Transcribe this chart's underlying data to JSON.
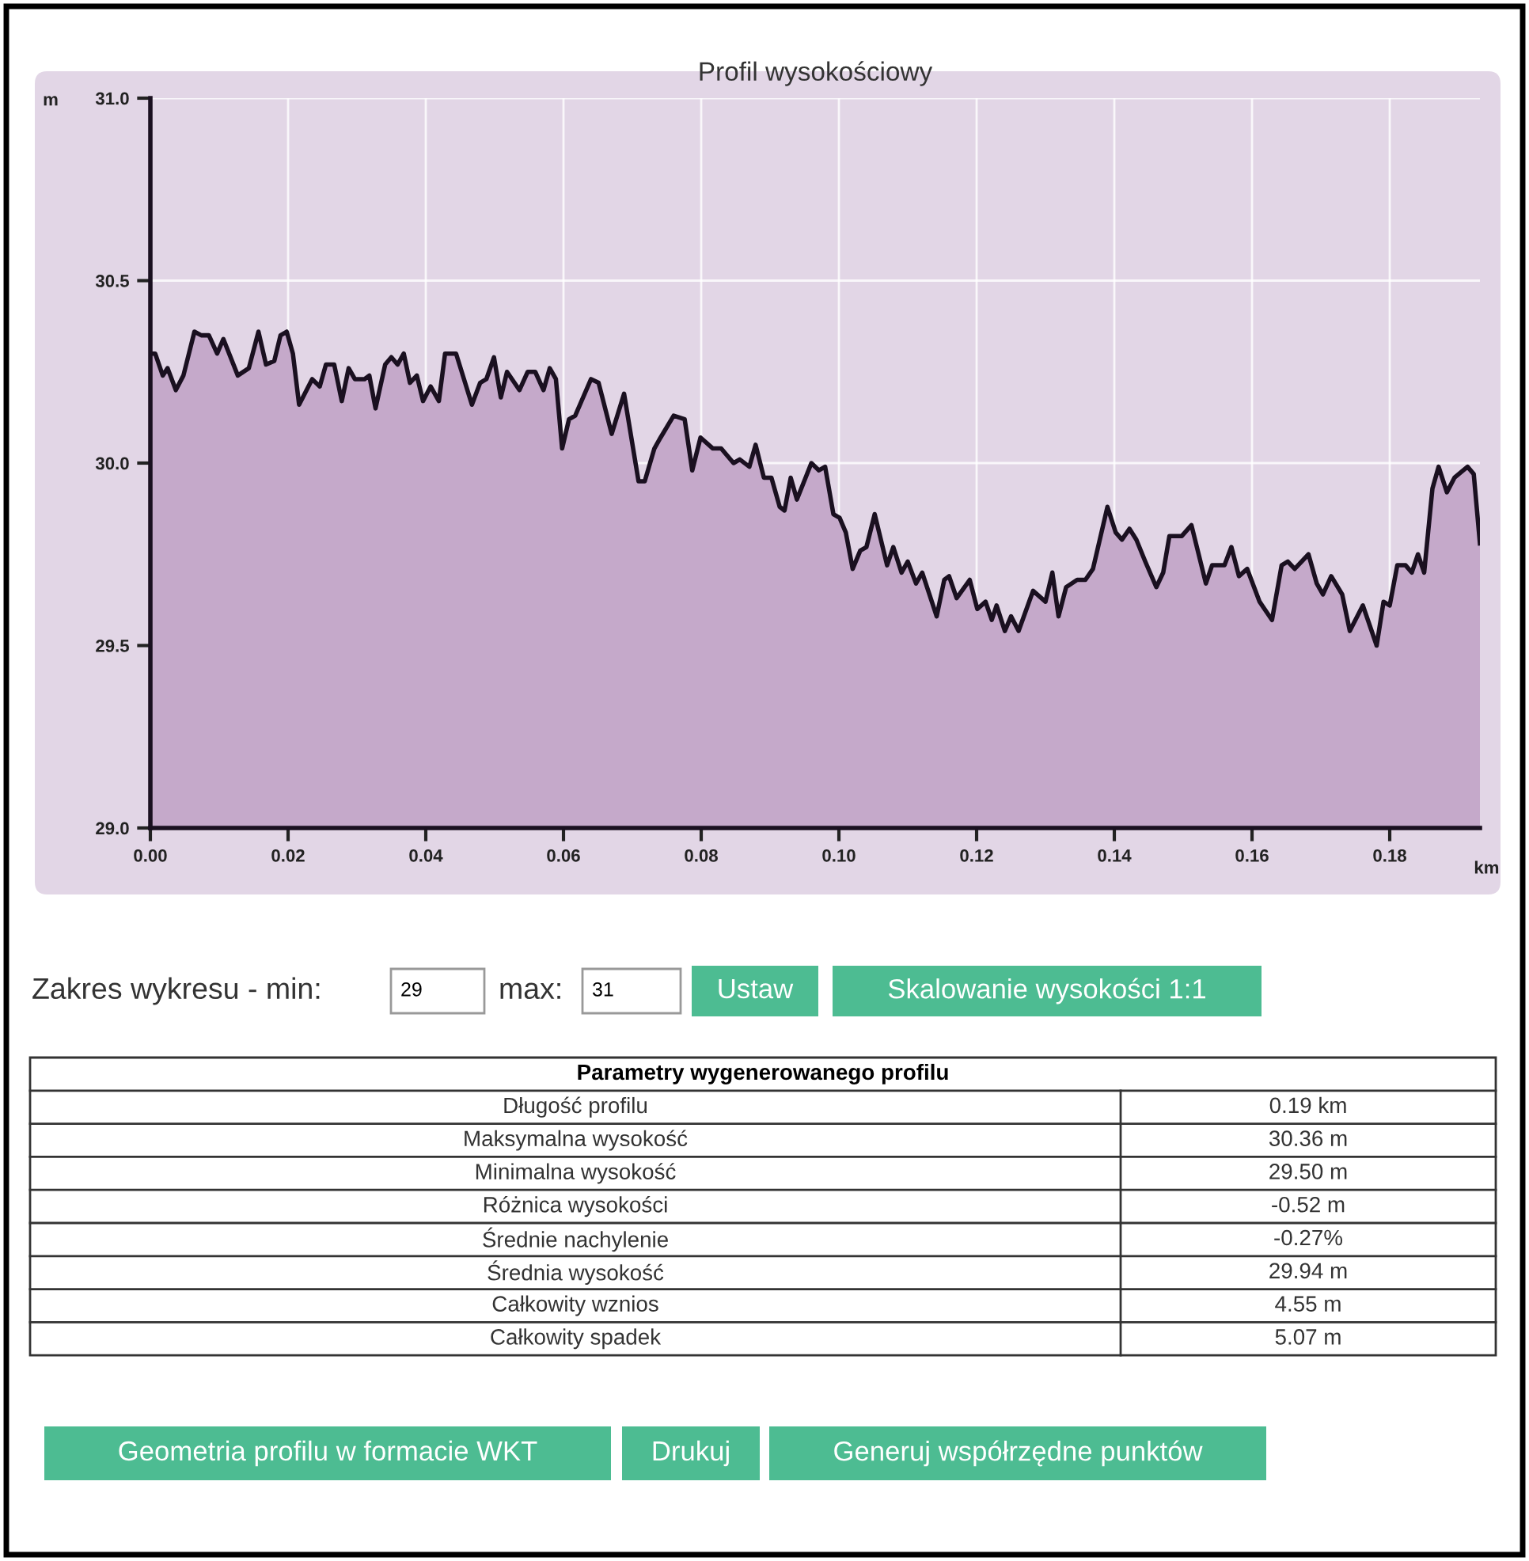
{
  "chart_data": {
    "type": "area",
    "title": "Profil wysokościowy",
    "xlabel": "km",
    "ylabel": "m",
    "x": [
      0,
      0.0007,
      0.0018,
      0.0025,
      0.0037,
      0.0048,
      0.0064,
      0.0074,
      0.0085,
      0.0097,
      0.0106,
      0.0127,
      0.0143,
      0.0157,
      0.0168,
      0.018,
      0.0189,
      0.0198,
      0.0207,
      0.0216,
      0.0235,
      0.0246,
      0.0255,
      0.0267,
      0.0278,
      0.0288,
      0.0297,
      0.0311,
      0.0318,
      0.0327,
      0.0341,
      0.035,
      0.0359,
      0.0368,
      0.0377,
      0.0387,
      0.0396,
      0.0407,
      0.0419,
      0.0428,
      0.0444,
      0.0467,
      0.0479,
      0.0488,
      0.0499,
      0.0509,
      0.0518,
      0.0536,
      0.0548,
      0.0559,
      0.0571,
      0.058,
      0.0589,
      0.0598,
      0.0608,
      0.0617,
      0.064,
      0.0651,
      0.067,
      0.0688,
      0.0709,
      0.0718,
      0.0732,
      0.0741,
      0.076,
      0.0776,
      0.0787,
      0.0799,
      0.0817,
      0.0829,
      0.0847,
      0.0856,
      0.087,
      0.0879,
      0.0891,
      0.0902,
      0.0914,
      0.0921,
      0.093,
      0.0939,
      0.096,
      0.0971,
      0.098,
      0.0992,
      0.1001,
      0.101,
      0.102,
      0.1031,
      0.104,
      0.1052,
      0.107,
      0.1079,
      0.1091,
      0.11,
      0.1112,
      0.1121,
      0.1142,
      0.1153,
      0.116,
      0.1171,
      0.119,
      0.1201,
      0.1213,
      0.1222,
      0.1229,
      0.1241,
      0.125,
      0.1261,
      0.1282,
      0.13,
      0.131,
      0.1319,
      0.133,
      0.1346,
      0.1358,
      0.1369,
      0.139,
      0.1402,
      0.1411,
      0.1422,
      0.1432,
      0.1445,
      0.1461,
      0.1471,
      0.148,
      0.1498,
      0.1512,
      0.1533,
      0.1542,
      0.156,
      0.157,
      0.1581,
      0.1593,
      0.1611,
      0.1629,
      0.1643,
      0.1652,
      0.1662,
      0.1682,
      0.1694,
      0.1703,
      0.1715,
      0.1731,
      0.1742,
      0.1761,
      0.1781,
      0.1791,
      0.18,
      0.1811,
      0.1823,
      0.1832,
      0.1841,
      0.185,
      0.1862,
      0.1871,
      0.1883,
      0.1894,
      0.1913,
      0.1922,
      0.1931
    ],
    "series": [
      {
        "color": "#c5a9ca",
        "values": [
          30.3,
          30.3,
          30.24,
          30.26,
          30.2,
          30.24,
          30.36,
          30.35,
          30.35,
          30.3,
          30.34,
          30.24,
          30.26,
          30.36,
          30.27,
          30.28,
          30.35,
          30.36,
          30.3,
          30.16,
          30.23,
          30.21,
          30.27,
          30.27,
          30.17,
          30.26,
          30.23,
          30.23,
          30.24,
          30.15,
          30.27,
          30.29,
          30.27,
          30.3,
          30.22,
          30.24,
          30.17,
          30.21,
          30.17,
          30.3,
          30.3,
          30.16,
          30.22,
          30.23,
          30.29,
          30.18,
          30.25,
          30.2,
          30.25,
          30.25,
          30.2,
          30.26,
          30.23,
          30.04,
          30.12,
          30.13,
          30.23,
          30.22,
          30.08,
          30.19,
          29.95,
          29.95,
          30.04,
          30.07,
          30.13,
          30.12,
          29.98,
          30.07,
          30.04,
          30.04,
          30.0,
          30.01,
          29.99,
          30.05,
          29.96,
          29.96,
          29.88,
          29.87,
          29.96,
          29.9,
          30.0,
          29.98,
          29.99,
          29.86,
          29.85,
          29.81,
          29.71,
          29.76,
          29.77,
          29.86,
          29.72,
          29.77,
          29.7,
          29.73,
          29.67,
          29.7,
          29.58,
          29.68,
          29.69,
          29.63,
          29.68,
          29.6,
          29.62,
          29.57,
          29.61,
          29.54,
          29.58,
          29.54,
          29.65,
          29.62,
          29.7,
          29.58,
          29.66,
          29.68,
          29.68,
          29.71,
          29.88,
          29.81,
          29.79,
          29.82,
          29.79,
          29.73,
          29.66,
          29.7,
          29.8,
          29.8,
          29.83,
          29.67,
          29.72,
          29.72,
          29.77,
          29.69,
          29.71,
          29.62,
          29.57,
          29.72,
          29.73,
          29.71,
          29.75,
          29.67,
          29.64,
          29.69,
          29.64,
          29.54,
          29.61,
          29.5,
          29.62,
          29.61,
          29.72,
          29.72,
          29.7,
          29.75,
          29.7,
          29.93,
          29.99,
          29.92,
          29.96,
          29.99,
          29.97,
          29.78
        ]
      }
    ],
    "xlim": [
      0,
      0.1931
    ],
    "ylim": [
      29,
      31
    ],
    "xticks": [
      {
        "value": 0,
        "label": "0.00"
      },
      {
        "value": 0.02,
        "label": "0.02"
      },
      {
        "value": 0.04,
        "label": "0.04"
      },
      {
        "value": 0.06,
        "label": "0.06"
      },
      {
        "value": 0.08,
        "label": "0.08"
      },
      {
        "value": 0.1,
        "label": "0.10"
      },
      {
        "value": 0.12,
        "label": "0.12"
      },
      {
        "value": 0.14,
        "label": "0.14"
      },
      {
        "value": 0.16,
        "label": "0.16"
      },
      {
        "value": 0.18,
        "label": "0.18"
      }
    ],
    "yticks": [
      {
        "value": 29,
        "label": "29.0"
      },
      {
        "value": 29.5,
        "label": "29.5"
      },
      {
        "value": 30,
        "label": "30.0"
      },
      {
        "value": 30.5,
        "label": "30.5"
      },
      {
        "value": 31,
        "label": "31.0"
      }
    ],
    "grid": true,
    "legend": false,
    "marker": "none",
    "line_style": "solid",
    "annotations": [
      "Zakres wykresu - min:",
      "29",
      "max:",
      "31",
      "Ustaw",
      "Skalowanie wysokości 1:1",
      "Parametry wygenerowanego profilu",
      "Długość profilu",
      "0.19 km",
      "Maksymalna wysokość",
      "30.36 m",
      "Minimalna wysokość",
      "29.50 m",
      "Różnica wysokości",
      "-0.52 m",
      "Średnie nachylenie",
      "-0.27%",
      "Średnia wysokość",
      "29.94 m",
      "Całkowity wznios",
      "4.55 m",
      "Całkowity spadek",
      "5.07 m",
      "Geometria profilu w formacie WKT",
      "Drukuj",
      "Generuj współrzędne punktów"
    ]
  }
}
